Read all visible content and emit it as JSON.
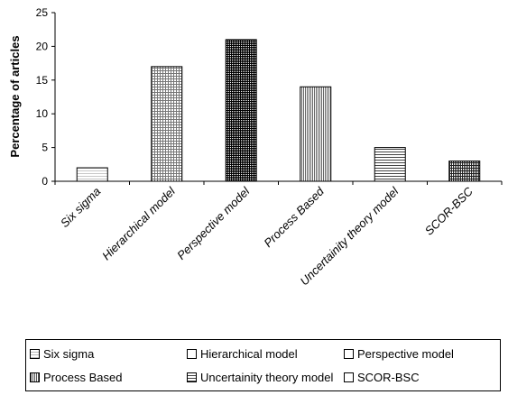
{
  "chart_data": {
    "type": "bar",
    "title": "",
    "xlabel": "",
    "ylabel": "Percentage of articles",
    "ylim": [
      0,
      25
    ],
    "yticks": [
      0,
      5,
      10,
      15,
      20,
      25
    ],
    "grid": false,
    "legend": "bottom",
    "categories": [
      "Six sigma",
      "Hierarchical model",
      "Perspective model",
      "Process Based",
      "Uncertainity theory model",
      "SCOR-BSC"
    ],
    "values": [
      2,
      17,
      21,
      14,
      5,
      3
    ]
  },
  "legend": {
    "items": [
      "Six sigma",
      "Hierarchical model",
      "Perspective model",
      "Process Based",
      "Uncertainity theory model",
      "SCOR-BSC"
    ]
  }
}
